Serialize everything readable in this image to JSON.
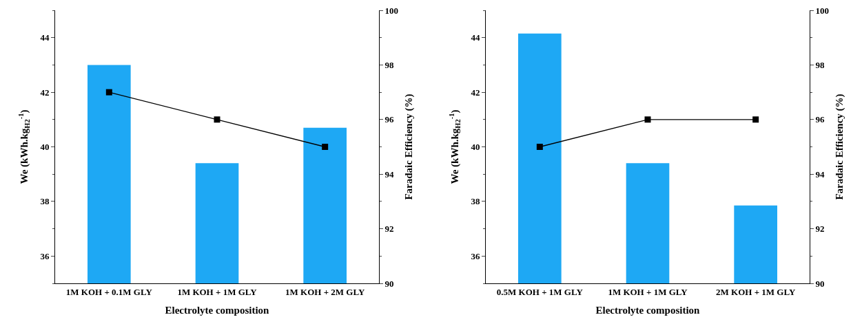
{
  "chart_data": [
    {
      "type": "bar",
      "xlabel": "Electrolyte composition",
      "ylabel": "We (kWh.kg$_{H2}$$^{-1}$)",
      "y2label": "Faradaic Efficiency (%)",
      "categories": [
        "1M KOH + 0.1M GLY",
        "1M KOH + 1M GLY",
        "1M KOH + 2M GLY"
      ],
      "series": [
        {
          "color": "#1ea8f4",
          "values": [
            43.0,
            39.4,
            40.7
          ]
        },
        {
          "type": "line",
          "axis": "y2",
          "color": "#000000",
          "values": [
            97,
            96,
            95
          ]
        }
      ],
      "ylim": [
        35,
        45
      ],
      "yticks": [
        36,
        38,
        40,
        42,
        44
      ],
      "y2lim": [
        90,
        100
      ],
      "y2ticks": [
        90,
        92,
        94,
        96,
        98,
        100
      ],
      "grid": false,
      "legend": false,
      "marker": "square",
      "line_style": "solid"
    },
    {
      "type": "bar",
      "xlabel": "Electrolyte composition",
      "ylabel": "We (kWh.kg$_{H2}$$^{-1}$)",
      "y2label": "Faradaic Efficiency (%)",
      "categories": [
        "0.5M KOH + 1M GLY",
        "1M KOH + 1M GLY",
        "2M KOH + 1M GLY"
      ],
      "series": [
        {
          "color": "#1ea8f4",
          "values": [
            44.15,
            39.4,
            37.85
          ]
        },
        {
          "type": "line",
          "axis": "y2",
          "color": "#000000",
          "values": [
            95,
            96,
            96
          ]
        }
      ],
      "ylim": [
        35,
        45
      ],
      "yticks": [
        36,
        38,
        40,
        42,
        44
      ],
      "y2lim": [
        90,
        100
      ],
      "y2ticks": [
        90,
        92,
        94,
        96,
        98,
        100
      ],
      "grid": false,
      "legend": false,
      "marker": "square",
      "line_style": "solid"
    }
  ]
}
